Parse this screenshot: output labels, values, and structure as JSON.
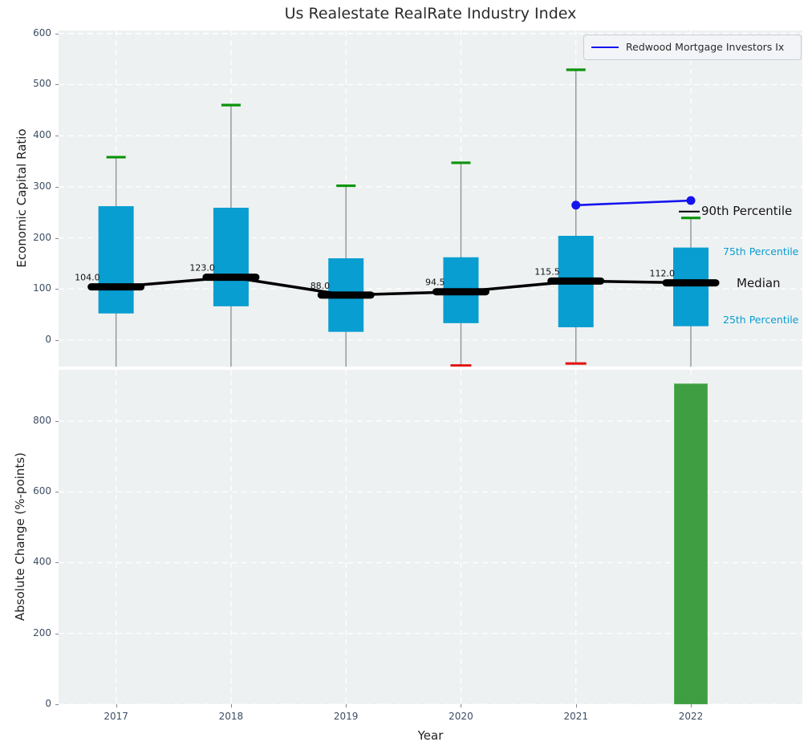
{
  "title": "Us Realestate RealRate Industry Index",
  "legend": {
    "label": "Redwood Mortgage Investors Ix"
  },
  "annotations": {
    "p90": "90th Percentile",
    "p75": "75th Percentile",
    "median": "Median",
    "p25": "25th Percentile"
  },
  "colors": {
    "box_fill": "#089ed1",
    "bar_fill": "#3f9e42",
    "bar_edge": "#55b055",
    "cap_90": "#0b940b",
    "cap_10": "#e01515",
    "median_line": "#000000",
    "series_line": "#1414ee",
    "whisker": "#8f9499",
    "grid": "#ffffff",
    "plot_bg": "#eef1f2",
    "tick_text": "#3d4e63"
  },
  "chart_data": [
    {
      "type": "box",
      "title": "Us Realestate RealRate Industry Index",
      "ylabel": "Economic Capital Ratio",
      "ylim": [
        -52,
        606
      ],
      "yticks": [
        0,
        100,
        200,
        300,
        400,
        500,
        600
      ],
      "grid": true,
      "legend_position": "upper right",
      "categories": [
        2017,
        2018,
        2019,
        2020,
        2021,
        2022
      ],
      "boxes": [
        {
          "year": 2017,
          "p90": 358,
          "p75": 262,
          "median": 104.0,
          "p25": 52,
          "p10": null
        },
        {
          "year": 2018,
          "p90": 460,
          "p75": 259,
          "median": 123.0,
          "p25": 66,
          "p10": null
        },
        {
          "year": 2019,
          "p90": 302,
          "p75": 160,
          "median": 88.0,
          "p25": 16,
          "p10": null
        },
        {
          "year": 2020,
          "p90": 347,
          "p75": 162,
          "median": 94.5,
          "p25": 33,
          "p10": -50
        },
        {
          "year": 2021,
          "p90": 529,
          "p75": 204,
          "median": 115.5,
          "p25": 25,
          "p10": -46
        },
        {
          "year": 2022,
          "p90": 239,
          "p75": 181,
          "median": 112.0,
          "p25": 27,
          "p10": null
        }
      ],
      "series": [
        {
          "name": "Redwood Mortgage Investors Ix",
          "points": [
            {
              "year": 2021,
              "value": 264
            },
            {
              "year": 2022,
              "value": 273
            }
          ]
        }
      ]
    },
    {
      "type": "bar",
      "ylabel": "Absolute Change (%-points)",
      "xlabel": "Year",
      "ylim": [
        0,
        945
      ],
      "yticks": [
        0,
        200,
        400,
        600,
        800
      ],
      "grid": true,
      "categories": [
        2017,
        2018,
        2019,
        2020,
        2021,
        2022
      ],
      "values": [
        null,
        null,
        null,
        null,
        null,
        905
      ]
    }
  ]
}
